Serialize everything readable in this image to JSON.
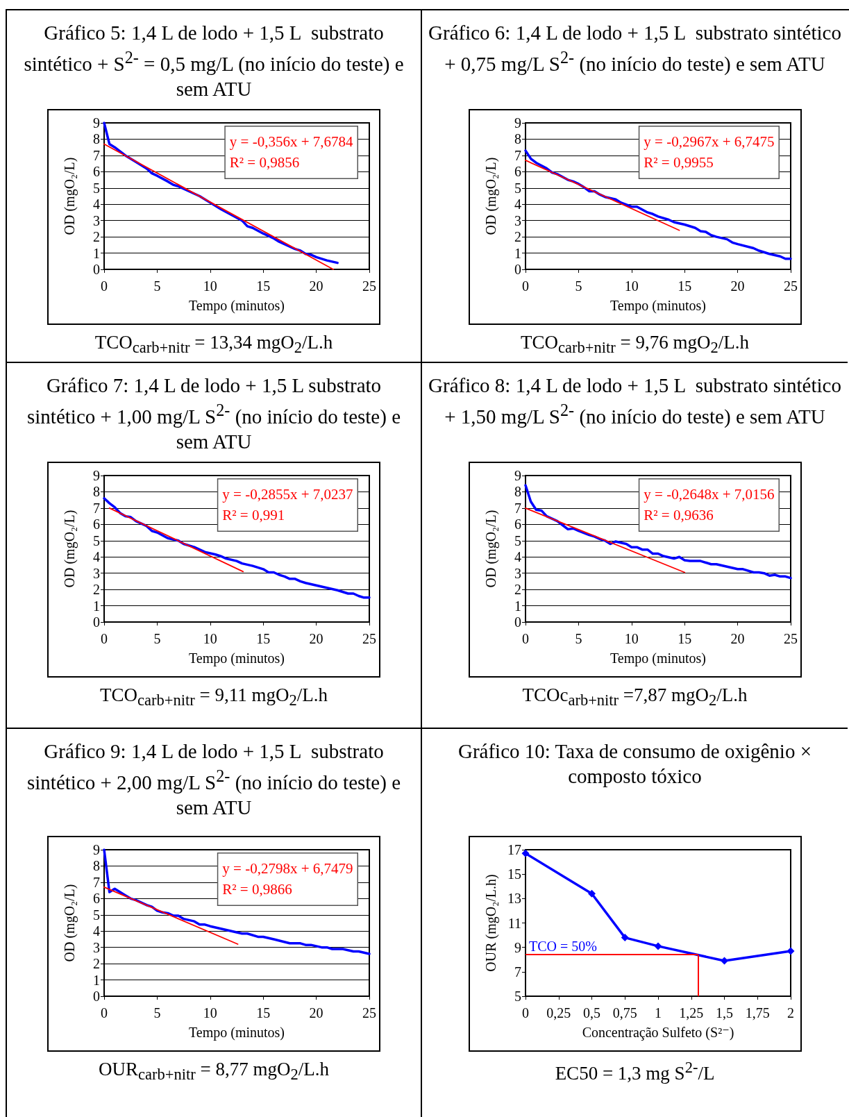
{
  "chart_data": [
    {
      "type": "line",
      "title": "Gráfico 5: 1,4 L de lodo + 1,5 L  substrato sintético + S$^{2-}$ = 0,5 mg/L (no início do teste) e sem ATU",
      "xlabel": "Tempo (minutos)",
      "ylabel": "OD (mgO₂/L)",
      "xlim": [
        0,
        25
      ],
      "xticks": [
        0,
        5,
        10,
        15,
        20,
        25
      ],
      "ylim": [
        0,
        9
      ],
      "yticks": [
        0,
        1,
        2,
        3,
        4,
        5,
        6,
        7,
        8,
        9
      ],
      "grid": "y",
      "series": [
        {
          "color": "#0000ff",
          "x": [
            0,
            0.5,
            1,
            2,
            3,
            4,
            4.5,
            5,
            6,
            6.5,
            7,
            8,
            9,
            10,
            11,
            12,
            13,
            13.5,
            14,
            15,
            16,
            16.5,
            17,
            18,
            18.5,
            19,
            19.5,
            20,
            21,
            22
          ],
          "values": [
            9,
            7.7,
            7.5,
            7.0,
            6.6,
            6.2,
            5.9,
            5.75,
            5.4,
            5.2,
            5.1,
            4.8,
            4.5,
            4.1,
            3.7,
            3.35,
            3.0,
            2.65,
            2.55,
            2.2,
            1.9,
            1.7,
            1.55,
            1.25,
            1.15,
            0.95,
            0.9,
            0.75,
            0.55,
            0.4
          ]
        },
        {
          "color": "#ff0000",
          "x": [
            0,
            21.6
          ],
          "values": [
            7.7,
            0
          ]
        }
      ],
      "annotations": [
        "y = -0,356x + 7,6784",
        "R² = 0,9856",
        "TCO$_{carb+nitr}$ = 13,34 mgO$_{2}$/L.h"
      ]
    },
    {
      "type": "line",
      "title": "Gráfico 6: 1,4 L de lodo + 1,5 L  substrato sintético + 0,75 mg/L S$^{2-}$ (no início do teste) e sem ATU",
      "xlabel": "Tempo (minutos)",
      "ylabel": "OD (mgO₂/L)",
      "xlim": [
        0,
        25
      ],
      "xticks": [
        0,
        5,
        10,
        15,
        20,
        25
      ],
      "ylim": [
        0,
        9
      ],
      "yticks": [
        0,
        1,
        2,
        3,
        4,
        5,
        6,
        7,
        8,
        9
      ],
      "grid": "y",
      "series": [
        {
          "color": "#0000ff",
          "x": [
            0,
            0.5,
            1,
            2,
            2.5,
            3,
            4,
            4.5,
            5,
            5.5,
            6,
            6.5,
            7,
            7.5,
            8.5,
            9,
            10,
            10.5,
            11.5,
            12,
            12.5,
            13.5,
            14,
            15,
            16,
            16.5,
            17,
            17.5,
            18,
            19,
            19.5,
            20,
            21.5,
            22,
            23,
            24,
            24.5,
            25
          ],
          "values": [
            7.3,
            6.8,
            6.55,
            6.2,
            5.95,
            5.85,
            5.5,
            5.4,
            5.25,
            5.05,
            4.8,
            4.8,
            4.6,
            4.45,
            4.3,
            4.1,
            3.85,
            3.85,
            3.5,
            3.4,
            3.25,
            3.05,
            2.9,
            2.75,
            2.55,
            2.35,
            2.3,
            2.1,
            2.0,
            1.85,
            1.65,
            1.55,
            1.3,
            1.15,
            0.95,
            0.8,
            0.65,
            0.65
          ]
        },
        {
          "color": "#ff0000",
          "x": [
            0,
            14.5
          ],
          "values": [
            6.7,
            2.4
          ]
        }
      ],
      "annotations": [
        "y = -0,2967x + 6,7475",
        "R² = 0,9955",
        "TCO$_{carb+nitr}$ = 9,76 mgO$_{2}$/L.h"
      ]
    },
    {
      "type": "line",
      "title": "Gráfico 7: 1,4 L de lodo + 1,5 L substrato sintético + 1,00 mg/L S$^{2-}$ (no início do teste) e sem ATU",
      "xlabel": "Tempo (minutos)",
      "ylabel": "OD (mgO₂/L)",
      "xlim": [
        0,
        25
      ],
      "xticks": [
        0,
        5,
        10,
        15,
        20,
        25
      ],
      "ylim": [
        0,
        9
      ],
      "yticks": [
        0,
        1,
        2,
        3,
        4,
        5,
        6,
        7,
        8,
        9
      ],
      "grid": "y",
      "series": [
        {
          "color": "#0000ff",
          "x": [
            0,
            0.5,
            1,
            1.5,
            2,
            2.5,
            3,
            4,
            4.5,
            5,
            6,
            7,
            7.5,
            8.5,
            9.5,
            10.5,
            11,
            11.5,
            12.5,
            13,
            14,
            15,
            15.5,
            16,
            16.5,
            17,
            17.5,
            18,
            18.5,
            19,
            20,
            21,
            22,
            23,
            23.5,
            24,
            24.5,
            25
          ],
          "values": [
            7.6,
            7.3,
            7.05,
            6.7,
            6.5,
            6.45,
            6.2,
            5.9,
            5.6,
            5.5,
            5.15,
            5.0,
            4.8,
            4.6,
            4.3,
            4.15,
            4.05,
            3.9,
            3.75,
            3.6,
            3.45,
            3.25,
            3.05,
            3.05,
            2.9,
            2.8,
            2.65,
            2.65,
            2.5,
            2.4,
            2.25,
            2.1,
            1.95,
            1.75,
            1.75,
            1.6,
            1.5,
            1.5
          ]
        },
        {
          "color": "#ff0000",
          "x": [
            0.5,
            13.1
          ],
          "values": [
            7.0,
            3.1
          ]
        }
      ],
      "annotations": [
        "y = -0,2855x + 7,0237",
        "R² = 0,991",
        "TCO$_{carb+nitr}$ = 9,11 mgO$_{2}$/L.h"
      ]
    },
    {
      "type": "line",
      "title": "Gráfico 8: 1,4 L de lodo + 1,5 L  substrato sintético + 1,50 mg/L S$^{2-}$ (no início do teste) e sem ATU",
      "xlabel": "Tempo (minutos)",
      "ylabel": "OD (mgO₂/L)",
      "xlim": [
        0,
        25
      ],
      "xticks": [
        0,
        5,
        10,
        15,
        20,
        25
      ],
      "ylim": [
        0,
        9
      ],
      "yticks": [
        0,
        1,
        2,
        3,
        4,
        5,
        6,
        7,
        8,
        9
      ],
      "grid": "y",
      "series": [
        {
          "color": "#0000ff",
          "x": [
            0,
            0.5,
            1,
            1.5,
            2,
            3,
            3.5,
            4,
            4.5,
            5,
            6,
            6.5,
            7,
            7.5,
            8,
            8.5,
            9.5,
            10,
            10.5,
            11,
            11.5,
            12,
            12.5,
            13,
            14,
            14.5,
            15,
            15.5,
            16.5,
            17.5,
            18,
            19,
            20,
            20.5,
            21.5,
            22,
            22.5,
            23,
            23.5,
            24,
            24.5,
            25
          ],
          "values": [
            8.4,
            7.4,
            6.9,
            6.85,
            6.5,
            6.2,
            5.95,
            5.7,
            5.75,
            5.6,
            5.35,
            5.25,
            5.1,
            5.0,
            4.8,
            4.95,
            4.8,
            4.6,
            4.6,
            4.45,
            4.45,
            4.2,
            4.2,
            4.05,
            3.9,
            4.0,
            3.8,
            3.75,
            3.75,
            3.55,
            3.55,
            3.4,
            3.25,
            3.25,
            3.05,
            3.05,
            3.0,
            2.85,
            2.9,
            2.8,
            2.8,
            2.7
          ]
        },
        {
          "color": "#ff0000",
          "x": [
            0,
            15
          ],
          "values": [
            7.0,
            3.05
          ]
        }
      ],
      "annotations": [
        "y = -0,2648x + 7,0156",
        "R² = 0,9636",
        "TCOc$_{arb+nitr}$ =7,87 mgO$_{2}$/L.h"
      ]
    },
    {
      "type": "line",
      "title": "Gráfico 9: 1,4 L de lodo + 1,5 L  substrato sintético + 2,00 mg/L S$^{2-}$ (no início do teste) e sem ATU",
      "xlabel": "Tempo (minutos)",
      "ylabel": "OD (mgO₂/L)",
      "xlim": [
        0,
        25
      ],
      "xticks": [
        0,
        5,
        10,
        15,
        20,
        25
      ],
      "ylim": [
        0,
        9
      ],
      "yticks": [
        0,
        1,
        2,
        3,
        4,
        5,
        6,
        7,
        8,
        9
      ],
      "grid": "y",
      "series": [
        {
          "color": "#0000ff",
          "x": [
            0,
            0.5,
            1,
            2,
            2.5,
            3,
            4,
            4.5,
            5,
            5.5,
            6,
            6.5,
            7,
            7.5,
            8.5,
            9,
            9.5,
            10,
            11,
            12,
            13,
            13.5,
            14.5,
            15,
            16,
            17.5,
            18.5,
            19,
            19.5,
            20.5,
            21,
            21.5,
            22.5,
            23.5,
            24,
            25
          ],
          "values": [
            9,
            6.4,
            6.6,
            6.2,
            6.0,
            5.9,
            5.6,
            5.5,
            5.25,
            5.15,
            5.1,
            4.95,
            4.95,
            4.75,
            4.6,
            4.4,
            4.4,
            4.3,
            4.15,
            4.0,
            3.85,
            3.85,
            3.65,
            3.65,
            3.5,
            3.25,
            3.25,
            3.15,
            3.15,
            3.0,
            3.0,
            2.9,
            2.9,
            2.75,
            2.75,
            2.6
          ]
        },
        {
          "color": "#ff0000",
          "x": [
            0,
            12.6
          ],
          "values": [
            6.7,
            3.2
          ]
        }
      ],
      "annotations": [
        "y = -0,2798x + 6,7479",
        "R² = 0,9866",
        "OUR$_{carb+nitr}$ = 8,77 mgO$_{2}$/L.h"
      ]
    },
    {
      "type": "line",
      "title": "Gráfico 10: Taxa de consumo de oxigênio × composto tóxico",
      "xlabel": "Concentração Sulfeto (S²⁻)",
      "ylabel": "OUR (mgO₂/L.h)",
      "xlim": [
        0,
        2
      ],
      "xticks": [
        0,
        {
          "value": 0.25,
          "label": "0,25"
        },
        {
          "value": 0.5,
          "label": "0,5"
        },
        {
          "value": 0.75,
          "label": "0,75"
        },
        1,
        {
          "value": 1.25,
          "label": "1,25"
        },
        {
          "value": 1.5,
          "label": "1,5"
        },
        {
          "value": 1.75,
          "label": "1,75"
        },
        2
      ],
      "ylim": [
        5,
        17
      ],
      "yticks": [
        5,
        7,
        9,
        11,
        13,
        15,
        17
      ],
      "marker": "diamond",
      "series": [
        {
          "color": "#0000ff",
          "x": [
            0,
            0.5,
            0.75,
            1,
            1.5,
            2
          ],
          "values": [
            16.7,
            13.4,
            9.8,
            9.1,
            7.9,
            8.7
          ]
        }
      ],
      "ref_lines": [
        {
          "axis": "y",
          "value": 8.4,
          "color": "#ff0000"
        },
        {
          "axis": "x",
          "value": 1.3,
          "color": "#ff0000"
        }
      ],
      "annotations": [
        {
          "text": "TCO = 50%",
          "x": 0,
          "y": 8.4
        },
        "EC50 = 1,3 mg S$^{2-}$/L"
      ]
    }
  ]
}
